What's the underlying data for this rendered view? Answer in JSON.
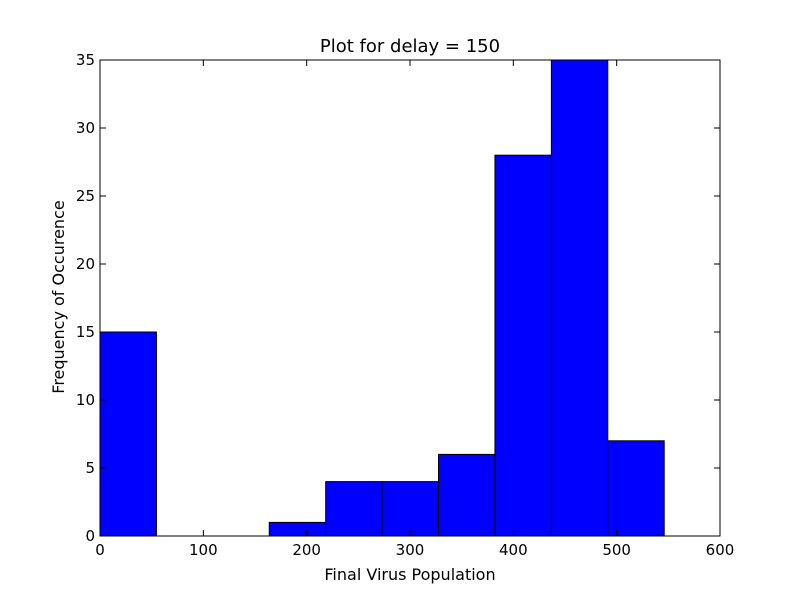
{
  "chart_data": {
    "type": "bar",
    "subtype": "histogram",
    "title": "Plot for delay = 150",
    "xlabel": "Final Virus Population",
    "ylabel": "Frequency of Occurence",
    "xlim": [
      0,
      600
    ],
    "ylim": [
      0,
      35
    ],
    "xticks": [
      0,
      100,
      200,
      300,
      400,
      500,
      600
    ],
    "yticks": [
      0,
      5,
      10,
      15,
      20,
      25,
      30,
      35
    ],
    "grid": false,
    "bar_color": "#0000ff",
    "edge_color": "#000000",
    "bins": [
      {
        "x0": 0,
        "x1": 54.6,
        "value": 15
      },
      {
        "x0": 54.6,
        "x1": 109.2,
        "value": 0
      },
      {
        "x0": 109.2,
        "x1": 163.8,
        "value": 0
      },
      {
        "x0": 163.8,
        "x1": 218.4,
        "value": 1
      },
      {
        "x0": 218.4,
        "x1": 273.0,
        "value": 4
      },
      {
        "x0": 273.0,
        "x1": 327.6,
        "value": 4
      },
      {
        "x0": 327.6,
        "x1": 382.2,
        "value": 6
      },
      {
        "x0": 382.2,
        "x1": 436.8,
        "value": 28
      },
      {
        "x0": 436.8,
        "x1": 491.4,
        "value": 35
      },
      {
        "x0": 491.4,
        "x1": 546.0,
        "value": 7
      }
    ]
  }
}
